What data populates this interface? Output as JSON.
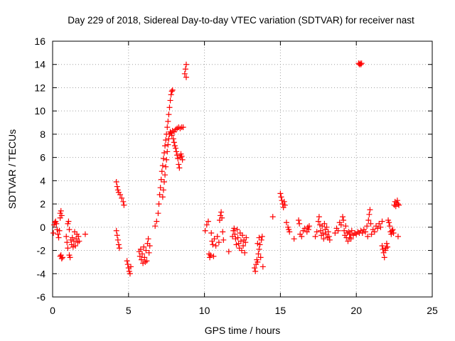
{
  "chart_data": {
    "type": "scatter",
    "title": "Day 229 of 2018, Sidereal Day-to-day VTEC variation (SDTVAR) for receiver nast",
    "xlabel": "GPS time / hours",
    "ylabel": "SDTVAR / TECUs",
    "xlim": [
      0,
      25
    ],
    "ylim": [
      -6,
      16
    ],
    "xticks": [
      0,
      5,
      10,
      15,
      20,
      25
    ],
    "yticks": [
      -6,
      -4,
      -2,
      0,
      2,
      4,
      6,
      8,
      10,
      12,
      14,
      16
    ],
    "xtick_labels": [
      "0",
      "5",
      "10",
      "15",
      "20",
      "25"
    ],
    "ytick_labels": [
      "-6",
      "-4",
      "-2",
      "0",
      "2",
      "4",
      "6",
      "8",
      "10",
      "12",
      "14",
      "16"
    ],
    "grid": true,
    "marker": "+",
    "color": "#ff0000",
    "series": [
      {
        "name": "SDTVAR",
        "points": [
          [
            0.05,
            -0.5
          ],
          [
            0.1,
            0.2
          ],
          [
            0.15,
            0.4
          ],
          [
            0.2,
            0.5
          ],
          [
            0.25,
            0.3
          ],
          [
            0.3,
            -0.2
          ],
          [
            0.35,
            -0.6
          ],
          [
            0.4,
            -0.9
          ],
          [
            0.45,
            -0.3
          ],
          [
            0.5,
            0.8
          ],
          [
            0.5,
            1.2
          ],
          [
            0.55,
            1.4
          ],
          [
            0.6,
            1.0
          ],
          [
            0.5,
            -2.5
          ],
          [
            0.6,
            -2.7
          ],
          [
            0.55,
            -2.4
          ],
          [
            0.65,
            -2.6
          ],
          [
            0.9,
            -0.8
          ],
          [
            0.95,
            -1.3
          ],
          [
            1.0,
            -1.8
          ],
          [
            1.0,
            0.3
          ],
          [
            1.05,
            0.5
          ],
          [
            1.1,
            -0.2
          ],
          [
            1.1,
            -2.4
          ],
          [
            1.15,
            -2.6
          ],
          [
            1.2,
            -1.1
          ],
          [
            1.25,
            -1.5
          ],
          [
            1.3,
            -0.9
          ],
          [
            1.35,
            -1.7
          ],
          [
            1.4,
            -1.2
          ],
          [
            1.45,
            -0.4
          ],
          [
            1.5,
            -1.6
          ],
          [
            1.55,
            -1.0
          ],
          [
            1.6,
            -0.6
          ],
          [
            1.65,
            -1.3
          ],
          [
            1.7,
            -0.8
          ],
          [
            1.75,
            -1.2
          ],
          [
            2.15,
            -0.6
          ],
          [
            4.2,
            3.9
          ],
          [
            4.25,
            3.5
          ],
          [
            4.3,
            3.2
          ],
          [
            4.35,
            3.0
          ],
          [
            4.45,
            2.8
          ],
          [
            4.55,
            2.5
          ],
          [
            4.65,
            2.2
          ],
          [
            4.7,
            1.9
          ],
          [
            4.2,
            -0.3
          ],
          [
            4.25,
            -0.7
          ],
          [
            4.3,
            -1.1
          ],
          [
            4.35,
            -1.5
          ],
          [
            4.4,
            -1.8
          ],
          [
            4.9,
            -2.9
          ],
          [
            4.95,
            -3.2
          ],
          [
            5.0,
            -3.5
          ],
          [
            5.05,
            -3.8
          ],
          [
            5.1,
            -4.0
          ],
          [
            5.15,
            -3.4
          ],
          [
            5.7,
            -2.1
          ],
          [
            5.75,
            -2.5
          ],
          [
            5.8,
            -1.9
          ],
          [
            5.85,
            -2.8
          ],
          [
            5.9,
            -2.3
          ],
          [
            5.95,
            -3.1
          ],
          [
            6.0,
            -1.7
          ],
          [
            6.05,
            -2.6
          ],
          [
            6.1,
            -3.0
          ],
          [
            6.15,
            -2.0
          ],
          [
            6.2,
            -2.9
          ],
          [
            6.25,
            -1.4
          ],
          [
            6.3,
            -1.0
          ],
          [
            6.35,
            -2.2
          ],
          [
            6.4,
            -1.6
          ],
          [
            6.75,
            0.1
          ],
          [
            6.85,
            0.5
          ],
          [
            6.95,
            1.2
          ],
          [
            7.0,
            2.0
          ],
          [
            7.05,
            2.8
          ],
          [
            7.1,
            3.4
          ],
          [
            7.15,
            4.1
          ],
          [
            7.2,
            4.8
          ],
          [
            7.25,
            5.3
          ],
          [
            7.3,
            5.9
          ],
          [
            7.35,
            6.4
          ],
          [
            7.4,
            7.0
          ],
          [
            7.45,
            7.5
          ],
          [
            7.5,
            8.0
          ],
          [
            7.55,
            8.6
          ],
          [
            7.6,
            9.1
          ],
          [
            7.65,
            9.7
          ],
          [
            7.7,
            10.3
          ],
          [
            7.75,
            10.9
          ],
          [
            7.8,
            11.4
          ],
          [
            7.85,
            11.7
          ],
          [
            7.9,
            11.8
          ],
          [
            7.25,
            2.6
          ],
          [
            7.3,
            3.2
          ],
          [
            7.35,
            3.9
          ],
          [
            7.4,
            4.5
          ],
          [
            7.45,
            5.2
          ],
          [
            7.5,
            5.8
          ],
          [
            7.55,
            6.5
          ],
          [
            7.6,
            7.1
          ],
          [
            7.65,
            7.6
          ],
          [
            7.7,
            8.0
          ],
          [
            7.75,
            8.2
          ],
          [
            7.8,
            8.1
          ],
          [
            7.85,
            7.9
          ],
          [
            7.9,
            8.3
          ],
          [
            7.95,
            7.6
          ],
          [
            8.0,
            7.3
          ],
          [
            8.05,
            7.0
          ],
          [
            8.1,
            6.8
          ],
          [
            8.15,
            6.5
          ],
          [
            8.2,
            6.2
          ],
          [
            8.25,
            5.9
          ],
          [
            8.3,
            5.4
          ],
          [
            8.35,
            5.1
          ],
          [
            8.4,
            6.0
          ],
          [
            8.45,
            6.3
          ],
          [
            8.5,
            6.1
          ],
          [
            8.55,
            5.8
          ],
          [
            8.0,
            8.2
          ],
          [
            8.1,
            8.4
          ],
          [
            8.2,
            8.5
          ],
          [
            8.3,
            8.6
          ],
          [
            8.4,
            8.5
          ],
          [
            8.5,
            8.6
          ],
          [
            8.6,
            8.6
          ],
          [
            8.7,
            13.2
          ],
          [
            8.75,
            13.6
          ],
          [
            8.8,
            14.0
          ],
          [
            8.8,
            12.9
          ],
          [
            10.05,
            -0.3
          ],
          [
            10.15,
            0.2
          ],
          [
            10.25,
            0.5
          ],
          [
            10.3,
            -2.3
          ],
          [
            10.35,
            -2.6
          ],
          [
            10.4,
            -2.4
          ],
          [
            10.45,
            -0.5
          ],
          [
            10.5,
            -1.2
          ],
          [
            10.55,
            -1.5
          ],
          [
            10.6,
            -2.5
          ],
          [
            10.65,
            -1.0
          ],
          [
            10.75,
            -1.6
          ],
          [
            10.85,
            -0.8
          ],
          [
            10.95,
            -1.3
          ],
          [
            11.0,
            0.6
          ],
          [
            11.05,
            1.0
          ],
          [
            11.1,
            1.3
          ],
          [
            11.15,
            0.8
          ],
          [
            11.2,
            -0.4
          ],
          [
            11.25,
            -1.1
          ],
          [
            11.6,
            -2.1
          ],
          [
            11.85,
            -0.8
          ],
          [
            11.9,
            -0.3
          ],
          [
            11.95,
            -0.1
          ],
          [
            12.0,
            -0.6
          ],
          [
            12.05,
            -1.0
          ],
          [
            12.1,
            -1.5
          ],
          [
            12.15,
            -0.2
          ],
          [
            12.2,
            -0.9
          ],
          [
            12.25,
            -1.4
          ],
          [
            12.3,
            -1.8
          ],
          [
            12.35,
            -0.5
          ],
          [
            12.4,
            -1.2
          ],
          [
            12.45,
            -2.0
          ],
          [
            12.5,
            -0.7
          ],
          [
            12.55,
            -1.6
          ],
          [
            12.6,
            -1.1
          ],
          [
            12.65,
            -2.2
          ],
          [
            12.7,
            -1.3
          ],
          [
            12.75,
            -0.9
          ],
          [
            13.3,
            -3.5
          ],
          [
            13.35,
            -3.8
          ],
          [
            13.4,
            -3.2
          ],
          [
            13.45,
            -2.8
          ],
          [
            13.5,
            -3.0
          ],
          [
            13.55,
            -2.3
          ],
          [
            13.6,
            -1.9
          ],
          [
            13.65,
            -1.5
          ],
          [
            13.7,
            -2.6
          ],
          [
            13.75,
            -1.1
          ],
          [
            13.8,
            -0.8
          ],
          [
            13.85,
            -3.4
          ],
          [
            13.5,
            -1.4
          ],
          [
            13.6,
            -0.9
          ],
          [
            14.5,
            0.9
          ],
          [
            15.0,
            2.9
          ],
          [
            15.05,
            2.6
          ],
          [
            15.1,
            2.3
          ],
          [
            15.15,
            2.0
          ],
          [
            15.2,
            1.7
          ],
          [
            15.25,
            2.2
          ],
          [
            15.3,
            1.9
          ],
          [
            15.4,
            0.4
          ],
          [
            15.5,
            0.0
          ],
          [
            15.55,
            -0.2
          ],
          [
            15.6,
            -0.4
          ],
          [
            15.9,
            -1.0
          ],
          [
            16.2,
            0.6
          ],
          [
            16.25,
            0.3
          ],
          [
            16.3,
            -0.6
          ],
          [
            16.4,
            -0.8
          ],
          [
            16.5,
            -0.3
          ],
          [
            16.6,
            -0.1
          ],
          [
            16.75,
            -0.4
          ],
          [
            16.8,
            0.0
          ],
          [
            16.85,
            -0.2
          ],
          [
            16.9,
            0.1
          ],
          [
            17.3,
            -0.8
          ],
          [
            17.4,
            -0.4
          ],
          [
            17.5,
            0.5
          ],
          [
            17.55,
            0.9
          ],
          [
            17.6,
            0.2
          ],
          [
            17.65,
            -0.3
          ],
          [
            17.7,
            -0.7
          ],
          [
            17.75,
            0.1
          ],
          [
            17.8,
            -0.5
          ],
          [
            17.85,
            -1.0
          ],
          [
            17.9,
            0.3
          ],
          [
            17.95,
            -0.2
          ],
          [
            18.0,
            -0.6
          ],
          [
            18.05,
            0.0
          ],
          [
            18.1,
            -0.9
          ],
          [
            18.15,
            -0.4
          ],
          [
            18.2,
            -0.8
          ],
          [
            18.25,
            -1.1
          ],
          [
            18.6,
            -0.5
          ],
          [
            18.7,
            -0.1
          ],
          [
            18.8,
            -0.3
          ],
          [
            18.9,
            0.4
          ],
          [
            19.0,
            0.2
          ],
          [
            19.1,
            0.9
          ],
          [
            19.15,
            0.6
          ],
          [
            19.2,
            -0.3
          ],
          [
            19.25,
            -0.7
          ],
          [
            19.3,
            0.1
          ],
          [
            19.35,
            -0.9
          ],
          [
            19.4,
            -0.5
          ],
          [
            19.45,
            -1.2
          ],
          [
            19.5,
            -0.4
          ],
          [
            19.55,
            -0.9
          ],
          [
            19.6,
            -0.6
          ],
          [
            19.65,
            -1.0
          ],
          [
            19.7,
            -0.3
          ],
          [
            19.8,
            -0.7
          ],
          [
            19.9,
            -0.5
          ],
          [
            20.0,
            -0.6
          ],
          [
            20.1,
            -0.4
          ],
          [
            20.2,
            -0.5
          ],
          [
            20.3,
            -0.3
          ],
          [
            20.4,
            -0.5
          ],
          [
            20.5,
            -0.2
          ],
          [
            20.6,
            -0.4
          ],
          [
            20.7,
            0.1
          ],
          [
            20.75,
            -0.8
          ],
          [
            20.8,
            0.6
          ],
          [
            20.85,
            1.1
          ],
          [
            20.9,
            1.5
          ],
          [
            20.95,
            0.3
          ],
          [
            21.0,
            -0.6
          ],
          [
            21.1,
            -0.2
          ],
          [
            21.2,
            -0.4
          ],
          [
            21.3,
            0.1
          ],
          [
            21.4,
            -0.1
          ],
          [
            21.5,
            0.3
          ],
          [
            21.6,
            0.0
          ],
          [
            21.7,
            0.5
          ],
          [
            20.15,
            14.1
          ],
          [
            20.2,
            14.0
          ],
          [
            20.25,
            14.1
          ],
          [
            20.3,
            14.0
          ],
          [
            20.35,
            14.1
          ],
          [
            21.7,
            -1.6
          ],
          [
            21.75,
            -1.9
          ],
          [
            21.8,
            -2.2
          ],
          [
            21.85,
            -2.6
          ],
          [
            21.9,
            -2.0
          ],
          [
            21.95,
            -1.8
          ],
          [
            22.0,
            -1.4
          ],
          [
            22.05,
            -1.7
          ],
          [
            22.1,
            0.6
          ],
          [
            22.15,
            0.4
          ],
          [
            22.2,
            0.1
          ],
          [
            22.25,
            -0.4
          ],
          [
            22.3,
            -0.6
          ],
          [
            22.35,
            -0.3
          ],
          [
            22.4,
            -0.2
          ],
          [
            22.45,
            -0.5
          ],
          [
            22.5,
            1.9
          ],
          [
            22.55,
            2.2
          ],
          [
            22.6,
            1.8
          ],
          [
            22.65,
            2.1
          ],
          [
            22.7,
            2.3
          ],
          [
            22.75,
            2.0
          ],
          [
            22.8,
            1.9
          ],
          [
            22.75,
            -0.8
          ]
        ]
      }
    ]
  }
}
